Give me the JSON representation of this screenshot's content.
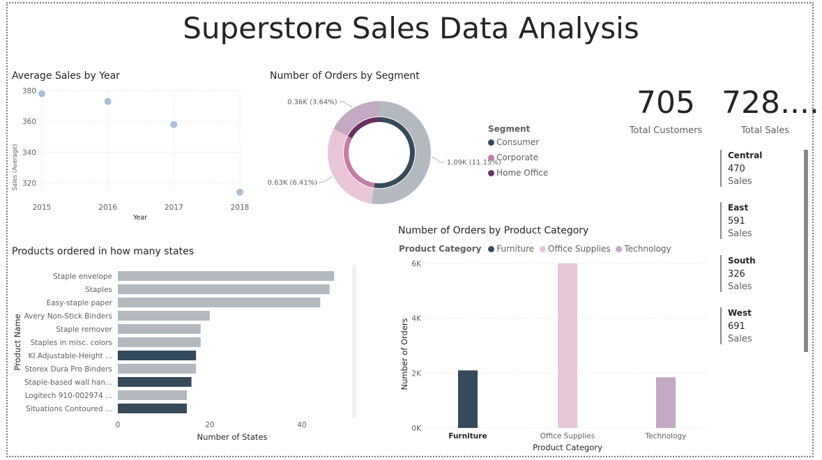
{
  "title": "Superstore Sales Data Analysis",
  "colors": {
    "furniture": "#354a5a",
    "office_supplies": "#e8c6d7",
    "technology": "#c3a9c2",
    "consumer": "#354a5a",
    "corporate": "#c57ca6",
    "home_office": "#6b2f63",
    "bar_gray": "#b3b9be",
    "bar_dark": "#354a5a",
    "scatter": "#a9c1da"
  },
  "cards": {
    "total_customers": {
      "value": "705",
      "label": "Total Customers"
    },
    "total_sales": {
      "value": "728....",
      "label": "Total Sales"
    }
  },
  "regions": [
    {
      "name": "Central",
      "value": "470",
      "label": "Sales"
    },
    {
      "name": "East",
      "value": "591",
      "label": "Sales"
    },
    {
      "name": "South",
      "value": "326",
      "label": "Sales"
    },
    {
      "name": "West",
      "value": "691",
      "label": "Sales"
    }
  ],
  "chart_data": [
    {
      "id": "avg_sales_by_year",
      "type": "scatter",
      "title": "Average Sales by Year",
      "xlabel": "Year",
      "ylabel": "Sales (Average)",
      "x": [
        2015,
        2016,
        2017,
        2018
      ],
      "y": [
        378,
        373,
        358,
        314
      ],
      "x_ticks": [
        "2015",
        "2016",
        "2017",
        "2018"
      ],
      "y_ticks": [
        320,
        340,
        360,
        380
      ],
      "ylim": [
        313,
        380
      ],
      "grid": true
    },
    {
      "id": "orders_by_segment",
      "type": "pie",
      "title": "Number of Orders by Segment",
      "legend_title": "Segment",
      "legend_position": "right",
      "outer_ring": [
        {
          "name": "Consumer",
          "value": 1.09,
          "label": "1.09K (11.15%)"
        },
        {
          "name": "Corporate",
          "value": 0.63,
          "label": "0.63K (6.41%)"
        },
        {
          "name": "Home Office",
          "value": 0.36,
          "label": "0.36K (3.64%)"
        }
      ],
      "inner_ring": [
        {
          "name": "Consumer",
          "value": 1.09
        },
        {
          "name": "Corporate",
          "value": 0.63
        },
        {
          "name": "Home Office",
          "value": 0.36
        }
      ]
    },
    {
      "id": "products_states",
      "type": "bar",
      "orientation": "horizontal",
      "title": "Products ordered in how many states",
      "xlabel": "Number of States",
      "ylabel": "Product Name",
      "categories": [
        "Staple envelope",
        "Staples",
        "Easy-staple paper",
        "Avery Non-Stick Binders",
        "Staple remover",
        "Staples in misc. colors",
        "KI Adjustable-Height ...",
        "Storex Dura Pro Binders",
        "Staple-based wall han...",
        "Logitech 910-002974 ...",
        "Situations Contoured ..."
      ],
      "values": [
        47,
        46,
        44,
        20,
        18,
        18,
        17,
        17,
        16,
        15,
        15
      ],
      "highlight": [
        false,
        false,
        false,
        false,
        false,
        false,
        true,
        false,
        true,
        false,
        true
      ],
      "x_ticks": [
        0,
        20,
        40
      ],
      "xlim": [
        0,
        50
      ]
    },
    {
      "id": "orders_by_category",
      "type": "bar",
      "title": "Number of Orders by Product Category",
      "legend_title": "Product Category",
      "legend_position": "top-left",
      "xlabel": "Product Category",
      "ylabel": "Number of Orders",
      "categories": [
        "Furniture",
        "Office Supplies",
        "Technology"
      ],
      "values": [
        2100,
        6000,
        1850
      ],
      "y_ticks": [
        "0K",
        "2K",
        "4K",
        "6K"
      ],
      "ylim": [
        0,
        6000
      ],
      "grid": true
    }
  ]
}
